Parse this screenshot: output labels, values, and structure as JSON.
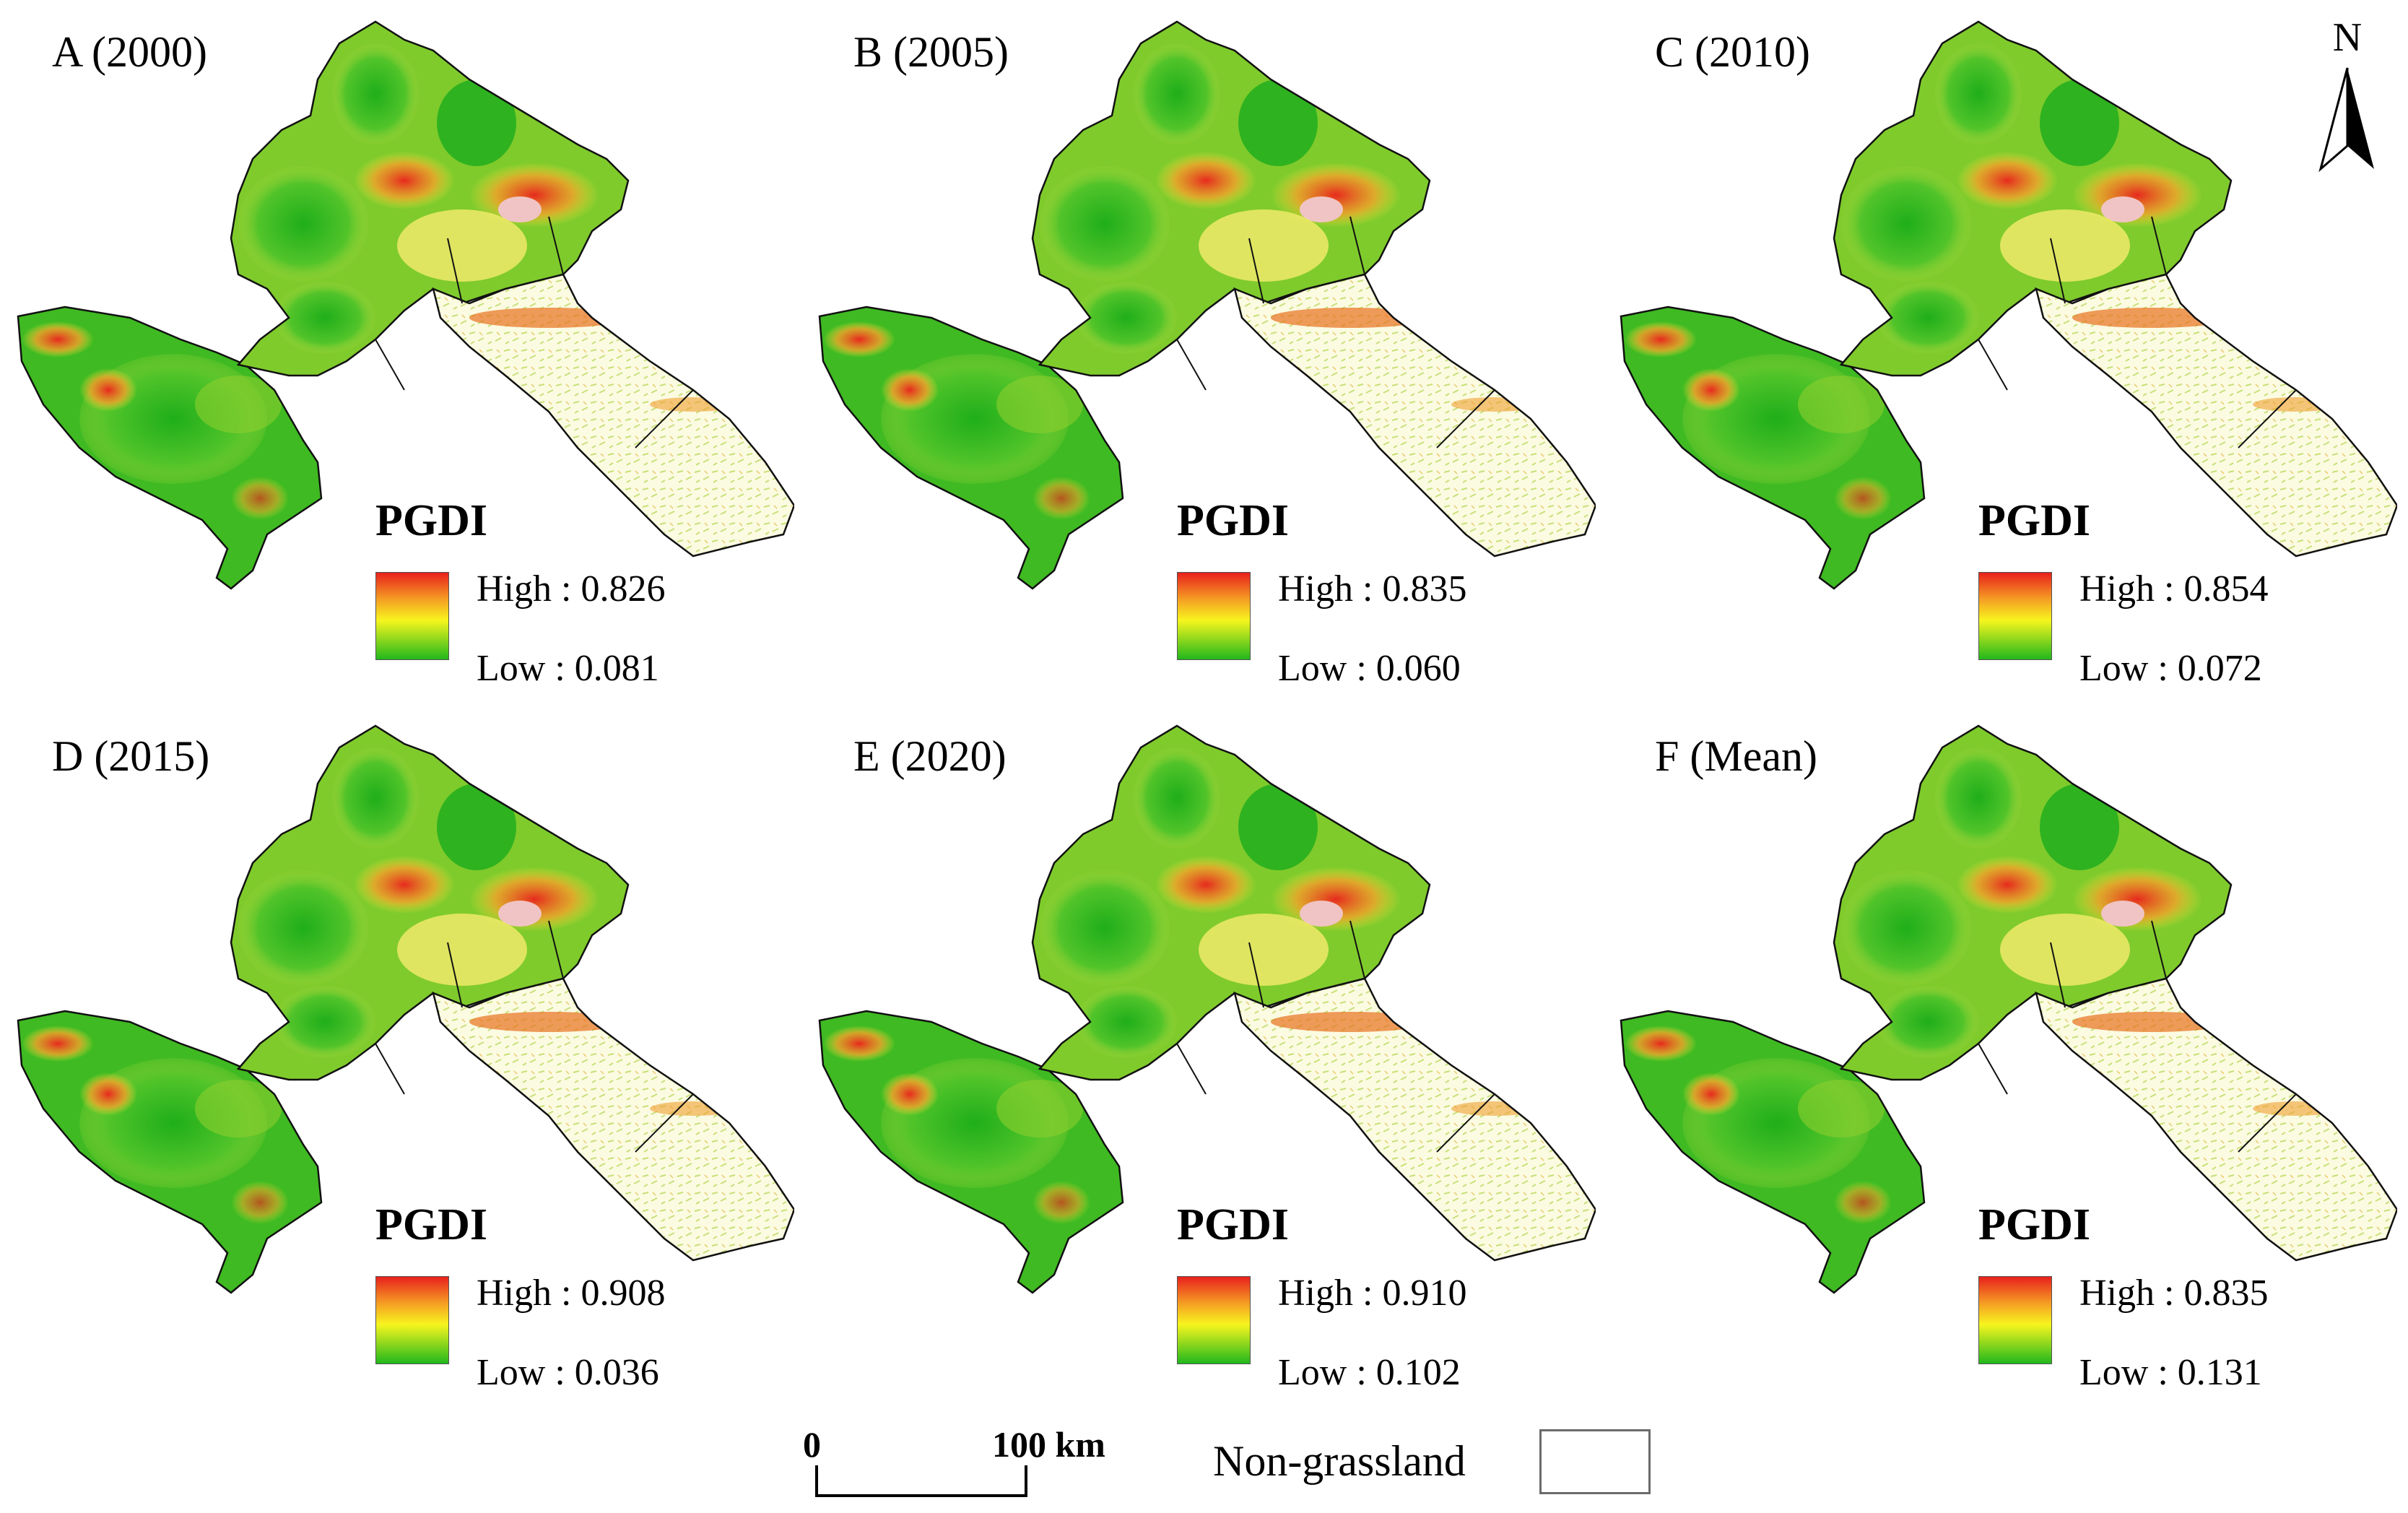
{
  "figure": {
    "panels": [
      {
        "label": "A (2000)",
        "legend_title": "PGDI",
        "high": "High : 0.826",
        "low": "Low : 0.081"
      },
      {
        "label": "B (2005)",
        "legend_title": "PGDI",
        "high": "High : 0.835",
        "low": "Low : 0.060"
      },
      {
        "label": "C (2010)",
        "legend_title": "PGDI",
        "high": "High : 0.854",
        "low": "Low : 0.072"
      },
      {
        "label": "D (2015)",
        "legend_title": "PGDI",
        "high": "High : 0.908",
        "low": "Low : 0.036"
      },
      {
        "label": "E (2020)",
        "legend_title": "PGDI",
        "high": "High : 0.910",
        "low": "Low : 0.102"
      },
      {
        "label": "F (Mean)",
        "legend_title": "PGDI",
        "high": "High : 0.835",
        "low": "Low : 0.131"
      }
    ],
    "north_arrow": {
      "letter": "N"
    },
    "scale_bar": {
      "left_label": "0",
      "right_label": "100 km"
    },
    "non_grassland": {
      "label": "Non-grassland"
    },
    "colors": {
      "high": "#e8201c",
      "mid_high": "#f59c24",
      "mid": "#f7f51e",
      "low": "#21b81c",
      "boundary": "#111111",
      "non_grassland": "#ffffff"
    }
  }
}
